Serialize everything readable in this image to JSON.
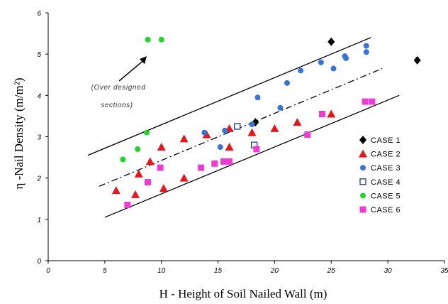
{
  "chart_data": {
    "type": "scatter",
    "xlabel": "H - Height of Soil Nailed Wall (m)",
    "ylabel": "η -Nail Density (m/m²)",
    "xlim": [
      0,
      35
    ],
    "ylim": [
      0,
      6
    ],
    "xticks": [
      "0",
      "5",
      "10",
      "15",
      "20",
      "25",
      "30",
      "35"
    ],
    "yticks": [
      "0",
      "1",
      "2",
      "3",
      "4",
      "5",
      "6"
    ],
    "grid": false,
    "legend_position": "right",
    "annotation": {
      "lines": [
        "(Over designed",
        "sections)"
      ],
      "arrow_to": [
        8.7,
        4.95
      ]
    },
    "series": [
      {
        "name": "CASE 1",
        "marker": "diamond",
        "color": "#000000",
        "points": [
          [
            25,
            5.3
          ],
          [
            32.6,
            4.85
          ],
          [
            18.3,
            3.35
          ]
        ]
      },
      {
        "name": "CASE 2",
        "marker": "triangle",
        "color": "#e8161b",
        "points": [
          [
            6,
            1.7
          ],
          [
            7.7,
            1.6
          ],
          [
            8,
            2.1
          ],
          [
            9,
            2.4
          ],
          [
            10,
            2.75
          ],
          [
            10.2,
            1.75
          ],
          [
            12,
            2.95
          ],
          [
            12,
            2.0
          ],
          [
            14,
            3.05
          ],
          [
            16,
            3.2
          ],
          [
            16,
            2.75
          ],
          [
            18,
            3.1
          ],
          [
            20,
            3.2
          ],
          [
            22,
            3.35
          ],
          [
            25,
            3.55
          ]
        ]
      },
      {
        "name": "CASE 3",
        "marker": "circle",
        "color": "#3a73d6",
        "points": [
          [
            13.8,
            3.1
          ],
          [
            15.2,
            2.75
          ],
          [
            15.6,
            3.15
          ],
          [
            18.5,
            3.95
          ],
          [
            20.5,
            3.7
          ],
          [
            21.1,
            4.3
          ],
          [
            22.3,
            4.6
          ],
          [
            24.1,
            4.8
          ],
          [
            25.2,
            4.65
          ],
          [
            26.2,
            4.95
          ],
          [
            26.3,
            4.9
          ],
          [
            28.1,
            5.2
          ],
          [
            28.1,
            5.05
          ],
          [
            18,
            3.3
          ]
        ]
      },
      {
        "name": "CASE 4",
        "marker": "square-open",
        "color": "#1f3a93",
        "points": [
          [
            16.7,
            3.25
          ],
          [
            18.2,
            2.8
          ]
        ]
      },
      {
        "name": "CASE 5",
        "marker": "circle",
        "color": "#22d42b",
        "points": [
          [
            6.6,
            2.45
          ],
          [
            7.9,
            2.7
          ],
          [
            8.7,
            3.1
          ],
          [
            8.8,
            5.35
          ],
          [
            10,
            5.35
          ]
        ]
      },
      {
        "name": "CASE 6",
        "marker": "square",
        "color": "#ee3bd6",
        "points": [
          [
            7,
            1.35
          ],
          [
            8.8,
            1.9
          ],
          [
            9.9,
            2.25
          ],
          [
            13.5,
            2.25
          ],
          [
            14.7,
            2.35
          ],
          [
            15.5,
            2.4
          ],
          [
            16,
            2.4
          ],
          [
            18.4,
            2.7
          ],
          [
            22.9,
            3.05
          ],
          [
            24.2,
            3.55
          ],
          [
            28,
            3.85
          ],
          [
            28.6,
            3.85
          ]
        ]
      }
    ],
    "trend_lines": [
      {
        "style": "solid",
        "from": [
          3.5,
          2.55
        ],
        "to": [
          28.5,
          5.4
        ]
      },
      {
        "style": "dashdot",
        "from": [
          4.5,
          1.8
        ],
        "to": [
          29.5,
          4.65
        ]
      },
      {
        "style": "solid",
        "from": [
          5,
          1.05
        ],
        "to": [
          31,
          4.0
        ]
      }
    ]
  }
}
